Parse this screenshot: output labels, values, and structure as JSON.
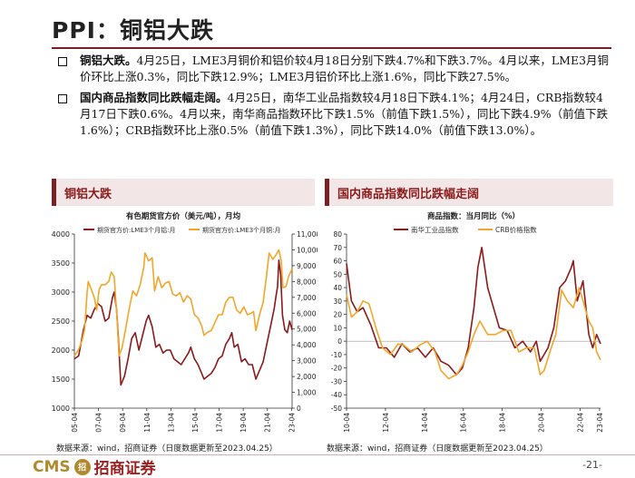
{
  "header": {
    "title": "PPI：铜铝大跌"
  },
  "bullets": [
    {
      "lead": "铜铝大跌。",
      "text": "4月25日，LME3月铜价和铝价较4月18日分别下跌4.7%和下跌3.7%。4月以来，LME3月铜价环比上涨0.3%，同比下跌12.9%；LME3月铝价环比上涨1.6%，同比下跌27.5%。"
    },
    {
      "lead": "国内商品指数同比跌幅走阔。",
      "text": "4月25日，南华工业品指数较4月18日下跌4.1%；4月24日，CRB指数较4月17日下跌0.6%。4月以来，南华商品指数环比下跌1.5%（前值下跌1.5%），同比下跌4.9%（前值下跌1.6%）；CRB指数环比上涨0.5%（前值下跌1.3%），同比下跌14.0%（前值下跌13.0%）。"
    }
  ],
  "panels": {
    "left": {
      "heading": "铜铝大跌",
      "source": "数据来源：wind，招商证券（日度数据更新至2023.04.25）"
    },
    "right": {
      "heading": "国内商品指数同比跌幅走阔",
      "source": "数据来源：wind，招商证券（日度数据更新至2023.04.25）"
    }
  },
  "footer": {
    "logo_text": "CMS",
    "logo_badge": "招",
    "logo_cn": "招商证券",
    "page": "-21-"
  },
  "colors": {
    "accent": "#7a1f22",
    "aluminum": "#8b1a1a",
    "copper": "#f2a62a"
  },
  "chart_data": [
    {
      "type": "line",
      "title": "有色期货官方价（美元/吨），月均",
      "x_labels": [
        "05-04",
        "07-04",
        "09-04",
        "11-04",
        "13-04",
        "15-04",
        "17-04",
        "19-04",
        "21-04",
        "23-04"
      ],
      "x_range": [
        2005.25,
        2023.3
      ],
      "series": [
        {
          "name": "期货官方价:LME3个月铝:月",
          "axis": "left",
          "color": "#8b1a1a",
          "x": [
            2005.25,
            2005.6,
            2006.0,
            2006.3,
            2006.6,
            2006.9,
            2007.2,
            2007.5,
            2007.8,
            2008.1,
            2008.4,
            2008.55,
            2008.75,
            2008.9,
            2009.1,
            2009.4,
            2009.7,
            2010.0,
            2010.3,
            2010.6,
            2010.9,
            2011.2,
            2011.4,
            2011.7,
            2012.0,
            2012.3,
            2012.6,
            2012.9,
            2013.2,
            2013.5,
            2013.8,
            2014.1,
            2014.4,
            2014.7,
            2014.9,
            2015.2,
            2015.5,
            2015.8,
            2016.0,
            2016.3,
            2016.6,
            2016.9,
            2017.2,
            2017.5,
            2017.8,
            2018.1,
            2018.3,
            2018.5,
            2018.8,
            2019.1,
            2019.4,
            2019.7,
            2020.0,
            2020.3,
            2020.6,
            2020.9,
            2021.2,
            2021.5,
            2021.8,
            2021.95,
            2022.1,
            2022.2,
            2022.35,
            2022.5,
            2022.7,
            2022.9,
            2023.1,
            2023.3
          ],
          "values": [
            1850,
            1900,
            2350,
            2600,
            2550,
            2700,
            2800,
            2750,
            2500,
            2550,
            2900,
            3000,
            2700,
            2200,
            1400,
            1550,
            1850,
            2200,
            2300,
            2000,
            2250,
            2500,
            2600,
            2400,
            2050,
            2100,
            1950,
            2000,
            2000,
            1850,
            1800,
            1750,
            1850,
            1950,
            2050,
            1850,
            1750,
            1600,
            1500,
            1550,
            1600,
            1700,
            1850,
            1900,
            2100,
            2200,
            2300,
            2050,
            2100,
            1800,
            1850,
            1750,
            1750,
            1500,
            1650,
            1800,
            2100,
            2400,
            2700,
            2900,
            3100,
            3550,
            3300,
            2600,
            2350,
            2300,
            2500,
            2350
          ]
        },
        {
          "name": "期货官方价:LME3个月铜:月",
          "axis": "right",
          "color": "#f2a62a",
          "x": [
            2005.25,
            2005.6,
            2005.9,
            2006.1,
            2006.3,
            2006.4,
            2006.6,
            2006.9,
            2007.1,
            2007.3,
            2007.5,
            2007.8,
            2008.1,
            2008.3,
            2008.55,
            2008.8,
            2008.95,
            2009.2,
            2009.5,
            2009.8,
            2010.1,
            2010.4,
            2010.7,
            2011.0,
            2011.1,
            2011.4,
            2011.7,
            2011.9,
            2012.2,
            2012.5,
            2012.8,
            2013.1,
            2013.4,
            2013.7,
            2014.0,
            2014.3,
            2014.6,
            2014.9,
            2015.2,
            2015.5,
            2015.8,
            2016.0,
            2016.3,
            2016.6,
            2016.9,
            2017.2,
            2017.5,
            2017.8,
            2018.1,
            2018.4,
            2018.7,
            2019.0,
            2019.3,
            2019.6,
            2019.9,
            2020.1,
            2020.3,
            2020.6,
            2020.9,
            2021.2,
            2021.4,
            2021.7,
            2021.9,
            2022.2,
            2022.4,
            2022.55,
            2022.8,
            2023.0,
            2023.3
          ],
          "values": [
            3300,
            3700,
            4300,
            5000,
            7300,
            8000,
            7600,
            7000,
            6200,
            7500,
            7800,
            7800,
            8000,
            8600,
            8300,
            5500,
            3300,
            3800,
            5000,
            6300,
            7400,
            7100,
            7800,
            8900,
            9800,
            9300,
            9500,
            7400,
            8300,
            7600,
            7900,
            8000,
            7200,
            7100,
            7300,
            6700,
            7100,
            6900,
            5900,
            5700,
            5200,
            4600,
            4800,
            4900,
            5400,
            5900,
            5900,
            6700,
            7000,
            7000,
            6200,
            6000,
            6400,
            5900,
            6000,
            6100,
            4900,
            5900,
            6700,
            8500,
            9800,
            9400,
            9600,
            10000,
            9300,
            7600,
            7700,
            8300,
            8800
          ]
        }
      ],
      "axes": {
        "left": {
          "min": 1000,
          "max": 4000,
          "ticks": [
            1000,
            1500,
            2000,
            2500,
            3000,
            3500,
            4000
          ]
        },
        "right": {
          "min": 0,
          "max": 11000,
          "ticks": [
            0,
            1000,
            2000,
            3000,
            4000,
            5000,
            6000,
            7000,
            8000,
            9000,
            10000,
            11000
          ]
        }
      },
      "legend": "top"
    },
    {
      "type": "line",
      "title": "商品指数：当月同比（%）",
      "x_labels": [
        "10-04",
        "12-04",
        "14-04",
        "16-04",
        "18-04",
        "20-04",
        "22-04",
        "23-04"
      ],
      "x_range": [
        2010.25,
        2023.3
      ],
      "series": [
        {
          "name": "南华工业品指数",
          "color": "#8b1a1a",
          "x": [
            2010.25,
            2010.5,
            2010.8,
            2011.1,
            2011.5,
            2011.9,
            2012.3,
            2012.7,
            2013.1,
            2013.5,
            2013.9,
            2014.3,
            2014.7,
            2015.1,
            2015.5,
            2015.9,
            2016.2,
            2016.5,
            2016.8,
            2017.0,
            2017.2,
            2017.5,
            2017.8,
            2018.1,
            2018.5,
            2018.9,
            2019.3,
            2019.7,
            2020.0,
            2020.2,
            2020.4,
            2020.6,
            2020.9,
            2021.2,
            2021.5,
            2021.8,
            2021.9,
            2022.1,
            2022.4,
            2022.7,
            2022.9,
            2023.1,
            2023.3
          ],
          "values": [
            58,
            30,
            22,
            25,
            12,
            -5,
            -5,
            -12,
            -2,
            -8,
            -5,
            -12,
            -5,
            -15,
            -18,
            -25,
            -20,
            -5,
            25,
            55,
            70,
            40,
            25,
            10,
            8,
            -5,
            0,
            -8,
            0,
            -15,
            -10,
            -5,
            10,
            40,
            45,
            55,
            60,
            30,
            45,
            5,
            -5,
            5,
            -2
          ]
        },
        {
          "name": "CRB价格指数",
          "color": "#f2a62a",
          "x": [
            2010.25,
            2010.5,
            2010.8,
            2011.1,
            2011.4,
            2011.8,
            2012.1,
            2012.5,
            2012.9,
            2013.2,
            2013.6,
            2014.0,
            2014.4,
            2014.8,
            2015.1,
            2015.5,
            2015.9,
            2016.2,
            2016.5,
            2016.8,
            2017.1,
            2017.5,
            2017.9,
            2018.3,
            2018.7,
            2019.1,
            2019.5,
            2019.9,
            2020.2,
            2020.4,
            2020.7,
            2021.0,
            2021.3,
            2021.6,
            2021.9,
            2022.2,
            2022.4,
            2022.7,
            2022.9,
            2023.1,
            2023.3
          ],
          "values": [
            35,
            18,
            22,
            30,
            28,
            8,
            -5,
            -10,
            -2,
            -3,
            -8,
            -3,
            0,
            -8,
            -22,
            -28,
            -25,
            -18,
            -8,
            5,
            15,
            5,
            5,
            8,
            8,
            -8,
            -5,
            -5,
            -25,
            -22,
            -8,
            5,
            38,
            30,
            25,
            40,
            30,
            15,
            10,
            -8,
            -14
          ]
        }
      ],
      "axes": {
        "y": {
          "min": -50,
          "max": 80,
          "ticks": [
            -50,
            -40,
            -30,
            -20,
            -10,
            0,
            10,
            20,
            30,
            40,
            50,
            60,
            70,
            80
          ]
        }
      },
      "legend": "top"
    }
  ]
}
